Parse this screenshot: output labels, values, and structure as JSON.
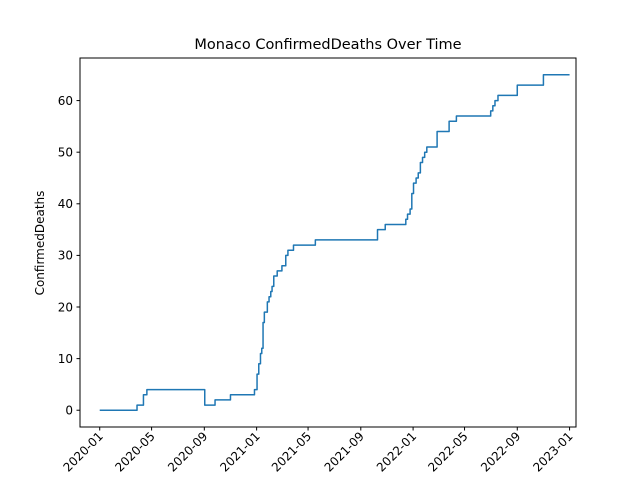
{
  "chart_data": {
    "type": "line",
    "title": "Monaco  ConfirmedDeaths Over Time",
    "xlabel": "",
    "ylabel": "ConfirmedDeaths",
    "x_type": "date",
    "xlim": [
      "2019-11-16",
      "2023-01-16"
    ],
    "ylim": [
      -3.25,
      68.25
    ],
    "x_ticks": [
      "2020-01-01",
      "2020-05-01",
      "2020-09-01",
      "2021-01-01",
      "2021-05-01",
      "2021-09-01",
      "2022-01-01",
      "2022-05-01",
      "2022-09-01",
      "2023-01-01"
    ],
    "x_tick_labels": [
      "2020-01",
      "2020-05",
      "2020-09",
      "2021-01",
      "2021-05",
      "2021-09",
      "2022-01",
      "2022-05",
      "2022-09",
      "2023-01"
    ],
    "y_ticks": [
      0,
      10,
      20,
      30,
      40,
      50,
      60
    ],
    "grid": false,
    "line_color": "#1f77b4",
    "series": [
      {
        "name": "",
        "color": "#1f77b4",
        "step": "post",
        "points": [
          [
            "2020-01-01",
            0
          ],
          [
            "2020-03-28",
            1
          ],
          [
            "2020-04-12",
            3
          ],
          [
            "2020-04-20",
            4
          ],
          [
            "2020-09-02",
            1
          ],
          [
            "2020-09-26",
            2
          ],
          [
            "2020-11-01",
            3
          ],
          [
            "2020-12-27",
            4
          ],
          [
            "2021-01-02",
            7
          ],
          [
            "2021-01-06",
            9
          ],
          [
            "2021-01-10",
            11
          ],
          [
            "2021-01-13",
            12
          ],
          [
            "2021-01-16",
            17
          ],
          [
            "2021-01-19",
            19
          ],
          [
            "2021-01-26",
            21
          ],
          [
            "2021-01-30",
            22
          ],
          [
            "2021-02-03",
            23
          ],
          [
            "2021-02-06",
            24
          ],
          [
            "2021-02-10",
            26
          ],
          [
            "2021-02-18",
            27
          ],
          [
            "2021-03-01",
            28
          ],
          [
            "2021-03-10",
            30
          ],
          [
            "2021-03-15",
            31
          ],
          [
            "2021-03-28",
            32
          ],
          [
            "2021-05-18",
            33
          ],
          [
            "2021-10-10",
            35
          ],
          [
            "2021-10-28",
            36
          ],
          [
            "2021-12-15",
            37
          ],
          [
            "2021-12-19",
            38
          ],
          [
            "2021-12-25",
            39
          ],
          [
            "2021-12-29",
            42
          ],
          [
            "2022-01-02",
            44
          ],
          [
            "2022-01-08",
            45
          ],
          [
            "2022-01-13",
            46
          ],
          [
            "2022-01-18",
            48
          ],
          [
            "2022-01-23",
            49
          ],
          [
            "2022-01-28",
            50
          ],
          [
            "2022-02-02",
            51
          ],
          [
            "2022-02-26",
            54
          ],
          [
            "2022-03-26",
            56
          ],
          [
            "2022-04-12",
            57
          ],
          [
            "2022-07-01",
            58
          ],
          [
            "2022-07-06",
            59
          ],
          [
            "2022-07-11",
            60
          ],
          [
            "2022-07-18",
            61
          ],
          [
            "2022-09-01",
            63
          ],
          [
            "2022-11-01",
            65
          ],
          [
            "2023-01-01",
            65
          ]
        ]
      }
    ]
  }
}
